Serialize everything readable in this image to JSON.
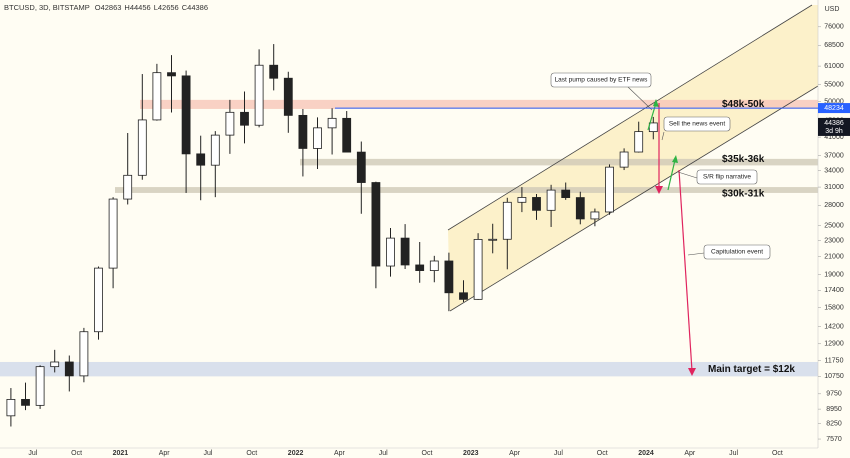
{
  "header": {
    "symbol": "BTCUSD, 3D, BITSTAMP",
    "ohlc_letters": [
      "O",
      "H",
      "L",
      "C"
    ],
    "last_bar": [
      42863,
      44456,
      42656,
      44386
    ]
  },
  "chart_data": {
    "type": "candlestick",
    "axis_unit": "USD",
    "log_scale": true,
    "grid": false,
    "up_color": "#ffffff",
    "down_color": "#222222",
    "edge_color": "#222222",
    "categories": [
      null,
      null,
      "Jul",
      null,
      null,
      "Oct",
      null,
      null,
      "2021",
      null,
      null,
      "Apr",
      null,
      null,
      "Jul",
      null,
      null,
      "Oct",
      null,
      null,
      "2022",
      null,
      null,
      "Apr",
      null,
      null,
      "Jul",
      null,
      null,
      "Oct",
      null,
      null,
      "2023",
      null,
      null,
      "Apr",
      null,
      null,
      "Jul",
      null,
      null,
      "Oct",
      null,
      null,
      "2024",
      null,
      null,
      "Apr",
      null,
      null,
      "Jul",
      null,
      null,
      "Oct",
      null,
      null
    ],
    "open": [
      8620,
      9450,
      9140,
      11350,
      11650,
      10780,
      13800,
      19700,
      28990,
      33110,
      45140,
      58800,
      57750,
      37330,
      35040,
      41460,
      47100,
      43820,
      61300,
      57000,
      46300,
      38480,
      43180,
      45540,
      37700,
      31800,
      19930,
      23300,
      20050,
      19430,
      20500,
      17160,
      16540,
      23130,
      23150,
      28470,
      29250,
      27220,
      30480,
      29230,
      25940,
      26970,
      34660,
      37720,
      42280,
      null,
      null,
      null,
      null,
      null,
      null,
      null,
      null,
      null,
      null,
      null
    ],
    "high": [
      10070,
      10380,
      11440,
      12470,
      12080,
      14100,
      19880,
      29300,
      41950,
      58350,
      61780,
      64850,
      59500,
      41330,
      42400,
      50500,
      52920,
      67000,
      69000,
      59100,
      47990,
      45800,
      48190,
      47440,
      40000,
      31950,
      24650,
      25200,
      22800,
      21100,
      21480,
      18400,
      23950,
      25250,
      29200,
      31000,
      29820,
      31400,
      31800,
      30200,
      27490,
      35200,
      38500,
      44700,
      45900,
      null,
      null,
      null,
      null,
      null,
      null,
      null,
      null,
      null,
      null,
      null
    ],
    "low": [
      8120,
      8900,
      8960,
      10990,
      9880,
      10400,
      13200,
      17600,
      28130,
      32300,
      44950,
      47050,
      30000,
      28800,
      29300,
      37330,
      39600,
      43300,
      53250,
      42000,
      32900,
      34300,
      37200,
      37700,
      26700,
      17600,
      18780,
      19600,
      18150,
      18200,
      15480,
      16300,
      16500,
      21400,
      19570,
      26950,
      25800,
      24800,
      28860,
      25170,
      24900,
      26550,
      34100,
      37600,
      40500,
      null,
      null,
      null,
      null,
      null,
      null,
      null,
      null,
      null,
      null,
      null
    ],
    "close": [
      9450,
      9140,
      11350,
      11650,
      10780,
      13800,
      19700,
      28990,
      33110,
      45140,
      58800,
      57750,
      37330,
      35040,
      41460,
      47100,
      43820,
      61300,
      57000,
      46300,
      38480,
      43180,
      45540,
      37700,
      31800,
      19930,
      23300,
      20050,
      19430,
      20500,
      17160,
      16540,
      23130,
      23150,
      28470,
      29250,
      27220,
      30480,
      29230,
      25940,
      26970,
      34660,
      37720,
      42280,
      44386,
      null,
      null,
      null,
      null,
      null,
      null,
      null,
      null,
      null,
      null,
      null
    ],
    "ylim": [
      7200,
      88300
    ],
    "yticks": [
      76000,
      68500,
      61000,
      55000,
      50000,
      45000,
      41000,
      37000,
      34000,
      31000,
      28000,
      25000,
      23000,
      21000,
      19000,
      17400,
      15800,
      14200,
      12900,
      11750,
      10750,
      9750,
      8950,
      8250,
      7570
    ],
    "price_line": {
      "value": 48234,
      "color": "#2962ff"
    },
    "countdown": "3d 9h",
    "zones": [
      {
        "label": "$48k-50k",
        "low": 48000,
        "high": 50500,
        "color": "#f7c6b8"
      },
      {
        "label": "$35k-36k",
        "low": 35000,
        "high": 36300,
        "color": "#cfc9b6"
      },
      {
        "label": "$30k-31k",
        "low": 30000,
        "high": 31000,
        "color": "#cfc9b6"
      },
      {
        "label": "Main target = $12k",
        "low": 10750,
        "high": 11650,
        "color": "#cfd8ea"
      }
    ],
    "annotations": [
      "Last pump caused by ETF news",
      "Sell the news event",
      "S/R flip narrative",
      "Capitulation event"
    ]
  }
}
